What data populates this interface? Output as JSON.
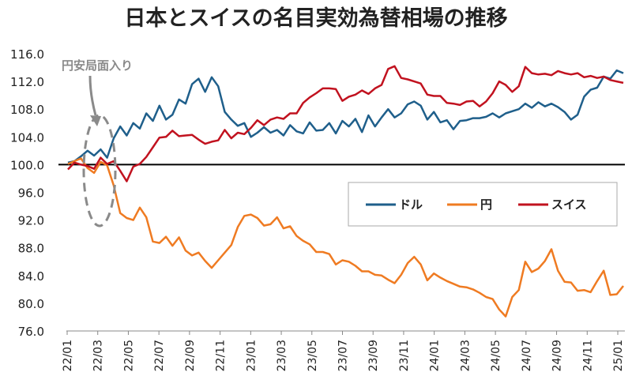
{
  "chart_data": {
    "type": "line",
    "title": "日本とスイスの名目実効為替相場の推移",
    "xlabel": "",
    "ylabel": "",
    "ylim": [
      76.0,
      116.0
    ],
    "yticks": [
      "116.0",
      "112.0",
      "108.0",
      "104.0",
      "100.0",
      "96.0",
      "92.0",
      "88.0",
      "84.0",
      "80.0",
      "76.0"
    ],
    "ytick_values": [
      116,
      112,
      108,
      104,
      100,
      96,
      92,
      88,
      84,
      80,
      76
    ],
    "xticks": [
      "22/01",
      "22/03",
      "22/05",
      "22/07",
      "22/09",
      "22/11",
      "23/01",
      "23/03",
      "23/05",
      "23/07",
      "23/09",
      "23/11",
      "24/01",
      "24/03",
      "24/05",
      "24/07",
      "24/09",
      "24/11",
      "25/01"
    ],
    "baseline": 100,
    "grid": false,
    "legend_position": "center-right",
    "annotation": {
      "text": "円安局面入り",
      "target": "22/03"
    },
    "series": [
      {
        "name": "ドル",
        "color": "#1f5f8b",
        "values": [
          100.3,
          100.5,
          101.2,
          102.0,
          101.3,
          102.2,
          101.0,
          103.8,
          105.5,
          104.2,
          106.0,
          105.2,
          107.4,
          106.3,
          108.5,
          106.5,
          107.2,
          109.4,
          108.8,
          111.6,
          112.4,
          110.5,
          112.6,
          111.3,
          107.6,
          106.5,
          105.6,
          106.0,
          104.0,
          104.6,
          105.4,
          104.6,
          105.0,
          104.2,
          105.7,
          104.8,
          104.5,
          106.1,
          104.9,
          105.0,
          106.0,
          104.5,
          106.3,
          105.5,
          106.6,
          104.7,
          107.1,
          105.5,
          106.8,
          108.0,
          106.8,
          107.4,
          108.7,
          109.1,
          108.5,
          106.5,
          107.6,
          106.1,
          106.4,
          105.1,
          106.3,
          106.4,
          106.7,
          106.7,
          106.9,
          107.4,
          106.8,
          107.4,
          107.7,
          108.0,
          108.8,
          108.2,
          109.0,
          108.4,
          108.8,
          108.3,
          107.6,
          106.5,
          107.2,
          109.8,
          110.8,
          111.1,
          112.7,
          112.4,
          113.6,
          113.2
        ]
      },
      {
        "name": "円",
        "color": "#ef7b22",
        "values": [
          100.1,
          100.5,
          100.9,
          99.5,
          98.8,
          100.4,
          99.9,
          97.0,
          93.0,
          92.3,
          92.0,
          93.8,
          92.4,
          88.9,
          88.7,
          89.6,
          88.3,
          89.5,
          87.6,
          86.9,
          87.3,
          86.1,
          85.1,
          86.2,
          87.3,
          88.4,
          91.0,
          92.6,
          92.8,
          92.3,
          91.2,
          91.4,
          92.4,
          90.8,
          91.1,
          89.7,
          89.0,
          88.5,
          87.4,
          87.4,
          87.1,
          85.6,
          86.2,
          86.0,
          85.4,
          84.6,
          84.6,
          84.1,
          84.0,
          83.4,
          82.9,
          84.1,
          85.8,
          86.7,
          85.6,
          83.3,
          84.3,
          83.7,
          83.2,
          82.8,
          82.4,
          82.3,
          82.0,
          81.5,
          80.9,
          80.6,
          79.1,
          78.1,
          80.9,
          81.9,
          86.0,
          84.5,
          85.0,
          86.1,
          87.8,
          84.7,
          83.1,
          83.0,
          81.8,
          81.9,
          81.6,
          83.2,
          84.7,
          81.2,
          81.3,
          82.5
        ]
      },
      {
        "name": "スイス",
        "color": "#c1121f",
        "values": [
          99.3,
          100.3,
          100.0,
          99.8,
          99.4,
          101.0,
          100.1,
          100.5,
          99.1,
          97.6,
          99.7,
          100.1,
          101.1,
          102.5,
          103.9,
          104.0,
          104.9,
          104.1,
          104.2,
          104.3,
          103.6,
          103.0,
          103.3,
          103.5,
          105.0,
          103.8,
          104.6,
          104.4,
          105.3,
          106.4,
          105.7,
          106.5,
          106.8,
          106.6,
          107.4,
          107.4,
          108.9,
          109.7,
          110.3,
          111.0,
          111.0,
          110.9,
          109.2,
          109.8,
          110.1,
          110.7,
          110.2,
          111.0,
          111.5,
          113.8,
          114.2,
          112.5,
          112.3,
          112.0,
          111.7,
          110.1,
          109.9,
          109.9,
          108.9,
          108.8,
          108.6,
          109.1,
          109.2,
          108.4,
          109.1,
          110.3,
          112.0,
          111.5,
          110.5,
          111.3,
          114.1,
          113.2,
          113.0,
          113.1,
          112.9,
          113.5,
          113.2,
          113.0,
          113.2,
          112.6,
          112.8,
          112.5,
          112.7,
          112.2,
          112.0,
          111.8
        ]
      }
    ]
  }
}
